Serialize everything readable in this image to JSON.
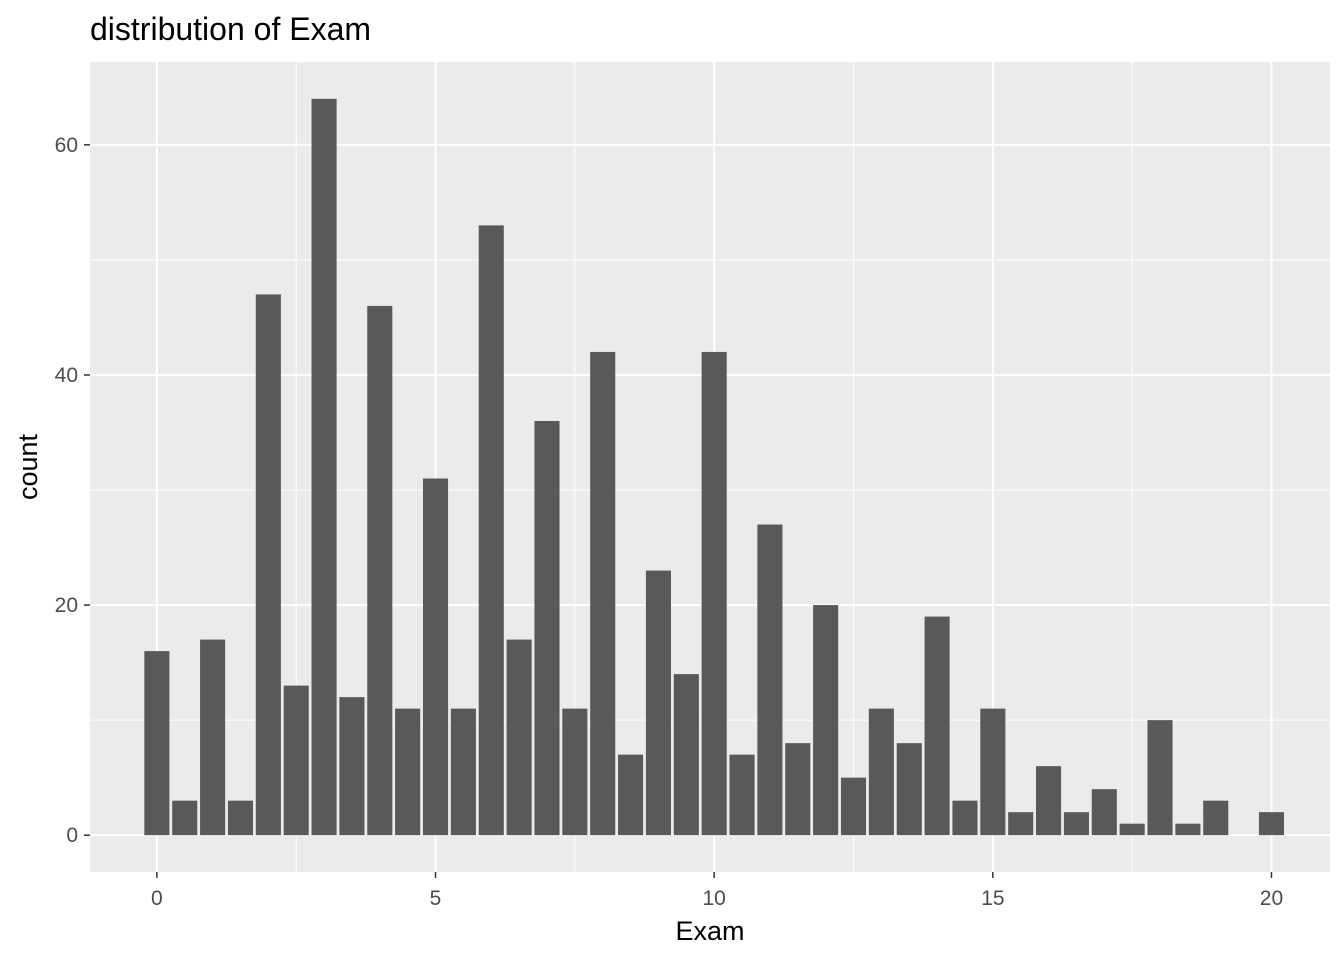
{
  "chart_data": {
    "type": "bar",
    "title": "distribution of Exam",
    "xlabel": "Exam",
    "ylabel": "count",
    "x": [
      0,
      0.5,
      1,
      1.5,
      2,
      2.5,
      3,
      3.5,
      4,
      4.5,
      5,
      5.5,
      6,
      6.5,
      7,
      7.5,
      8,
      8.5,
      9,
      9.5,
      10,
      10.5,
      11,
      11.5,
      12,
      12.5,
      13,
      13.5,
      14,
      14.5,
      15,
      15.5,
      16,
      16.5,
      17,
      17.5,
      18,
      18.5,
      19,
      20
    ],
    "values": [
      16,
      3,
      17,
      3,
      47,
      13,
      64,
      12,
      46,
      11,
      31,
      11,
      53,
      17,
      36,
      11,
      42,
      7,
      23,
      14,
      42,
      7,
      27,
      8,
      20,
      5,
      11,
      8,
      19,
      3,
      11,
      2,
      6,
      2,
      4,
      1,
      10,
      1,
      3,
      2
    ],
    "xlim": [
      -1.2,
      21.05
    ],
    "ylim": [
      -3.2,
      67.2
    ],
    "x_ticks": [
      0,
      5,
      10,
      15,
      20
    ],
    "x_tick_labels": [
      "0",
      "5",
      "10",
      "15",
      "20"
    ],
    "x_minor_ticks": [
      2.5,
      7.5,
      12.5,
      17.5
    ],
    "y_ticks": [
      0,
      20,
      40,
      60
    ],
    "y_tick_labels": [
      "0",
      "20",
      "40",
      "60"
    ],
    "y_minor_ticks": [
      10,
      30,
      50
    ],
    "grid": true,
    "legend": "none",
    "colors": {
      "bar": "#595959",
      "panel": "#ebebeb",
      "grid_major": "#ffffff",
      "grid_minor": "#ffffff",
      "tick_label": "#4d4d4d",
      "tick_mark": "#333333"
    }
  }
}
